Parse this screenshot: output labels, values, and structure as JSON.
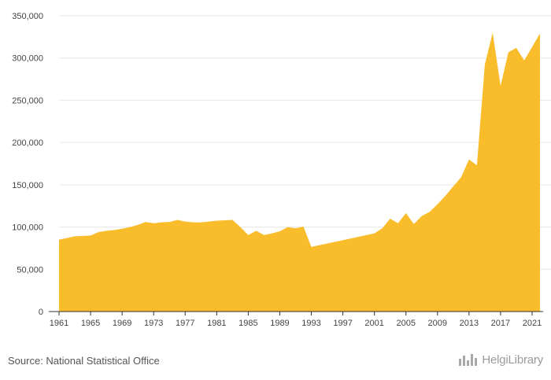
{
  "chart_data": {
    "type": "area",
    "title": "",
    "xlabel": "",
    "ylabel": "",
    "ylim": [
      0,
      350000
    ],
    "yticks": [
      "0",
      "50,000",
      "100,000",
      "150,000",
      "200,000",
      "250,000",
      "300,000",
      "350,000"
    ],
    "ytick_values": [
      0,
      50000,
      100000,
      150000,
      200000,
      250000,
      300000,
      350000
    ],
    "xlim": [
      1961,
      2022
    ],
    "xticks": [
      "1961",
      "1965",
      "1969",
      "1973",
      "1977",
      "1981",
      "1985",
      "1989",
      "1993",
      "1997",
      "2001",
      "2005",
      "2009",
      "2013",
      "2017",
      "2021"
    ],
    "xtick_values": [
      1961,
      1965,
      1969,
      1973,
      1977,
      1981,
      1985,
      1989,
      1993,
      1997,
      2001,
      2005,
      2009,
      2013,
      2017,
      2021
    ],
    "grid": true,
    "color": "#f9bd2c",
    "series": [
      {
        "x": [
          1961,
          1962,
          1963,
          1964,
          1965,
          1966,
          1967,
          1968,
          1969,
          1970,
          1971,
          1972,
          1973,
          1974,
          1975,
          1976,
          1977,
          1978,
          1979,
          1980,
          1981,
          1982,
          1983,
          1984,
          1985,
          1986,
          1987,
          1988,
          1989,
          1990,
          1991,
          1992,
          1993,
          1994,
          1995,
          1996,
          1997,
          1998,
          1999,
          2000,
          2001,
          2002,
          2003,
          2004,
          2005,
          2006,
          2007,
          2008,
          2009,
          2010,
          2011,
          2012,
          2013,
          2014,
          2015,
          2016,
          2017,
          2018,
          2019,
          2020,
          2021,
          2022
        ],
        "values": [
          85000,
          87000,
          89000,
          89500,
          90000,
          94000,
          95500,
          96500,
          98000,
          100000,
          102500,
          106000,
          104500,
          105500,
          106000,
          108500,
          106500,
          105500,
          105500,
          106500,
          107500,
          108000,
          108500,
          100000,
          90500,
          95500,
          90500,
          92500,
          95000,
          100000,
          98500,
          100500,
          76500,
          78500,
          80500,
          82500,
          84500,
          86500,
          88500,
          90500,
          92500,
          98500,
          110000,
          104500,
          116500,
          103500,
          113000,
          118000,
          127000,
          137000,
          148000,
          159000,
          180000,
          173000,
          292000,
          330000,
          267000,
          307000,
          312000,
          297000,
          313000,
          329000
        ]
      }
    ]
  },
  "footer": {
    "source": "Source: National Statistical Office",
    "logo_text": "HelgiLibrary",
    "logo_icon": "bar-chart-icon"
  }
}
